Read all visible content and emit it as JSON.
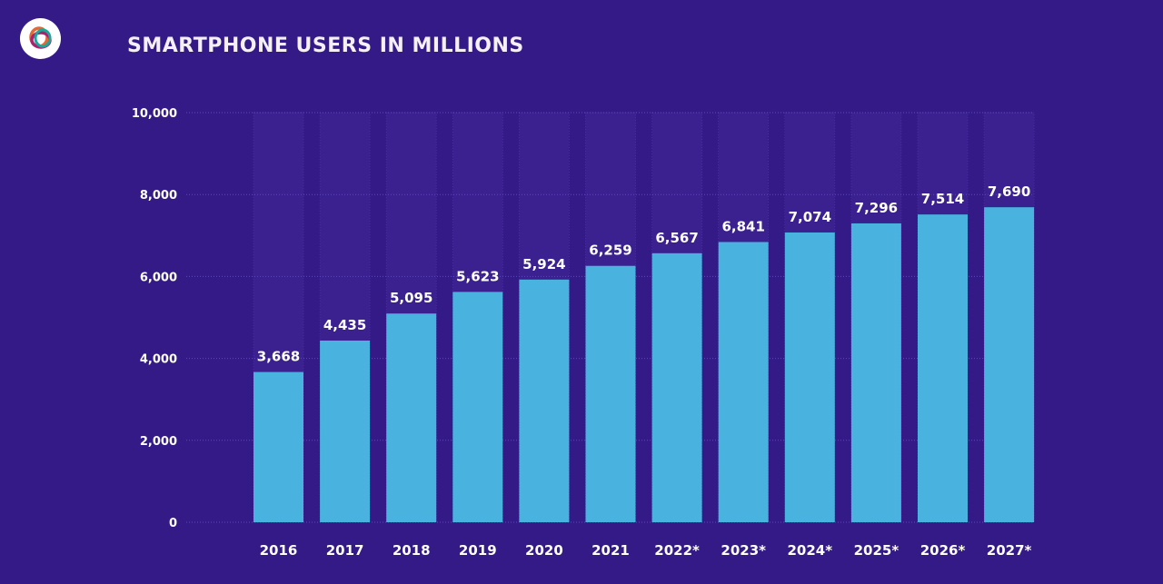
{
  "chart_data": {
    "type": "bar",
    "title": "SMARTPHONE USERS IN MILLIONS",
    "categories": [
      "2016",
      "2017",
      "2018",
      "2019",
      "2020",
      "2021",
      "2022*",
      "2023*",
      "2024*",
      "2025*",
      "2026*",
      "2027*"
    ],
    "values": [
      3668,
      4435,
      5095,
      5623,
      5924,
      6259,
      6567,
      6841,
      7074,
      7296,
      7514,
      7690
    ],
    "data_labels": [
      "3,668",
      "4,435",
      "5,095",
      "5,623",
      "5,924",
      "6,259",
      "6,567",
      "6,841",
      "7,074",
      "7,296",
      "7,514",
      "7,690"
    ],
    "yticks": [
      0,
      2000,
      4000,
      6000,
      8000,
      10000
    ],
    "ytick_labels": [
      "0",
      "2,000",
      "4,000",
      "6,000",
      "8,000",
      "10,000"
    ],
    "ylim": [
      0,
      10000
    ],
    "xlabel": "",
    "ylabel": "",
    "grid": true,
    "colors": {
      "background": "#341a87",
      "bar": "#49b2de",
      "column_bg": "#3b2090",
      "grid": "#5a48c0"
    }
  },
  "logo": {
    "icon": "rings-logo-icon"
  }
}
